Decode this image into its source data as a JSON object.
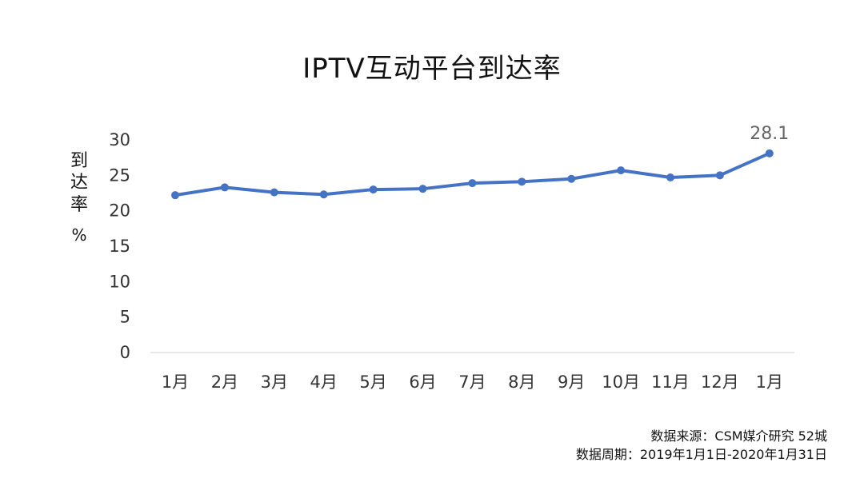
{
  "chart_data": {
    "type": "line",
    "title": "IPTV互动平台到达率",
    "ylabel": "到达率",
    "yunit": "%",
    "categories": [
      "1月",
      "2月",
      "3月",
      "4月",
      "5月",
      "6月",
      "7月",
      "8月",
      "9月",
      "10月",
      "11月",
      "12月",
      "1月"
    ],
    "series": [
      {
        "values": [
          22.2,
          23.3,
          22.6,
          22.3,
          23.0,
          23.1,
          23.9,
          24.1,
          24.5,
          25.7,
          24.7,
          25.0,
          28.1
        ]
      }
    ],
    "yticks": [
      0,
      5,
      10,
      15,
      20,
      25,
      30
    ],
    "ylim": [
      0,
      30
    ],
    "data_labels": [
      {
        "index": 12,
        "text": "28.1"
      }
    ],
    "grid": false,
    "legend": "none",
    "line_color": "#4472C4"
  },
  "notes": {
    "source": "数据来源：CSM媒介研究 52城",
    "period": "数据周期：2019年1月1日-2020年1月31日"
  }
}
